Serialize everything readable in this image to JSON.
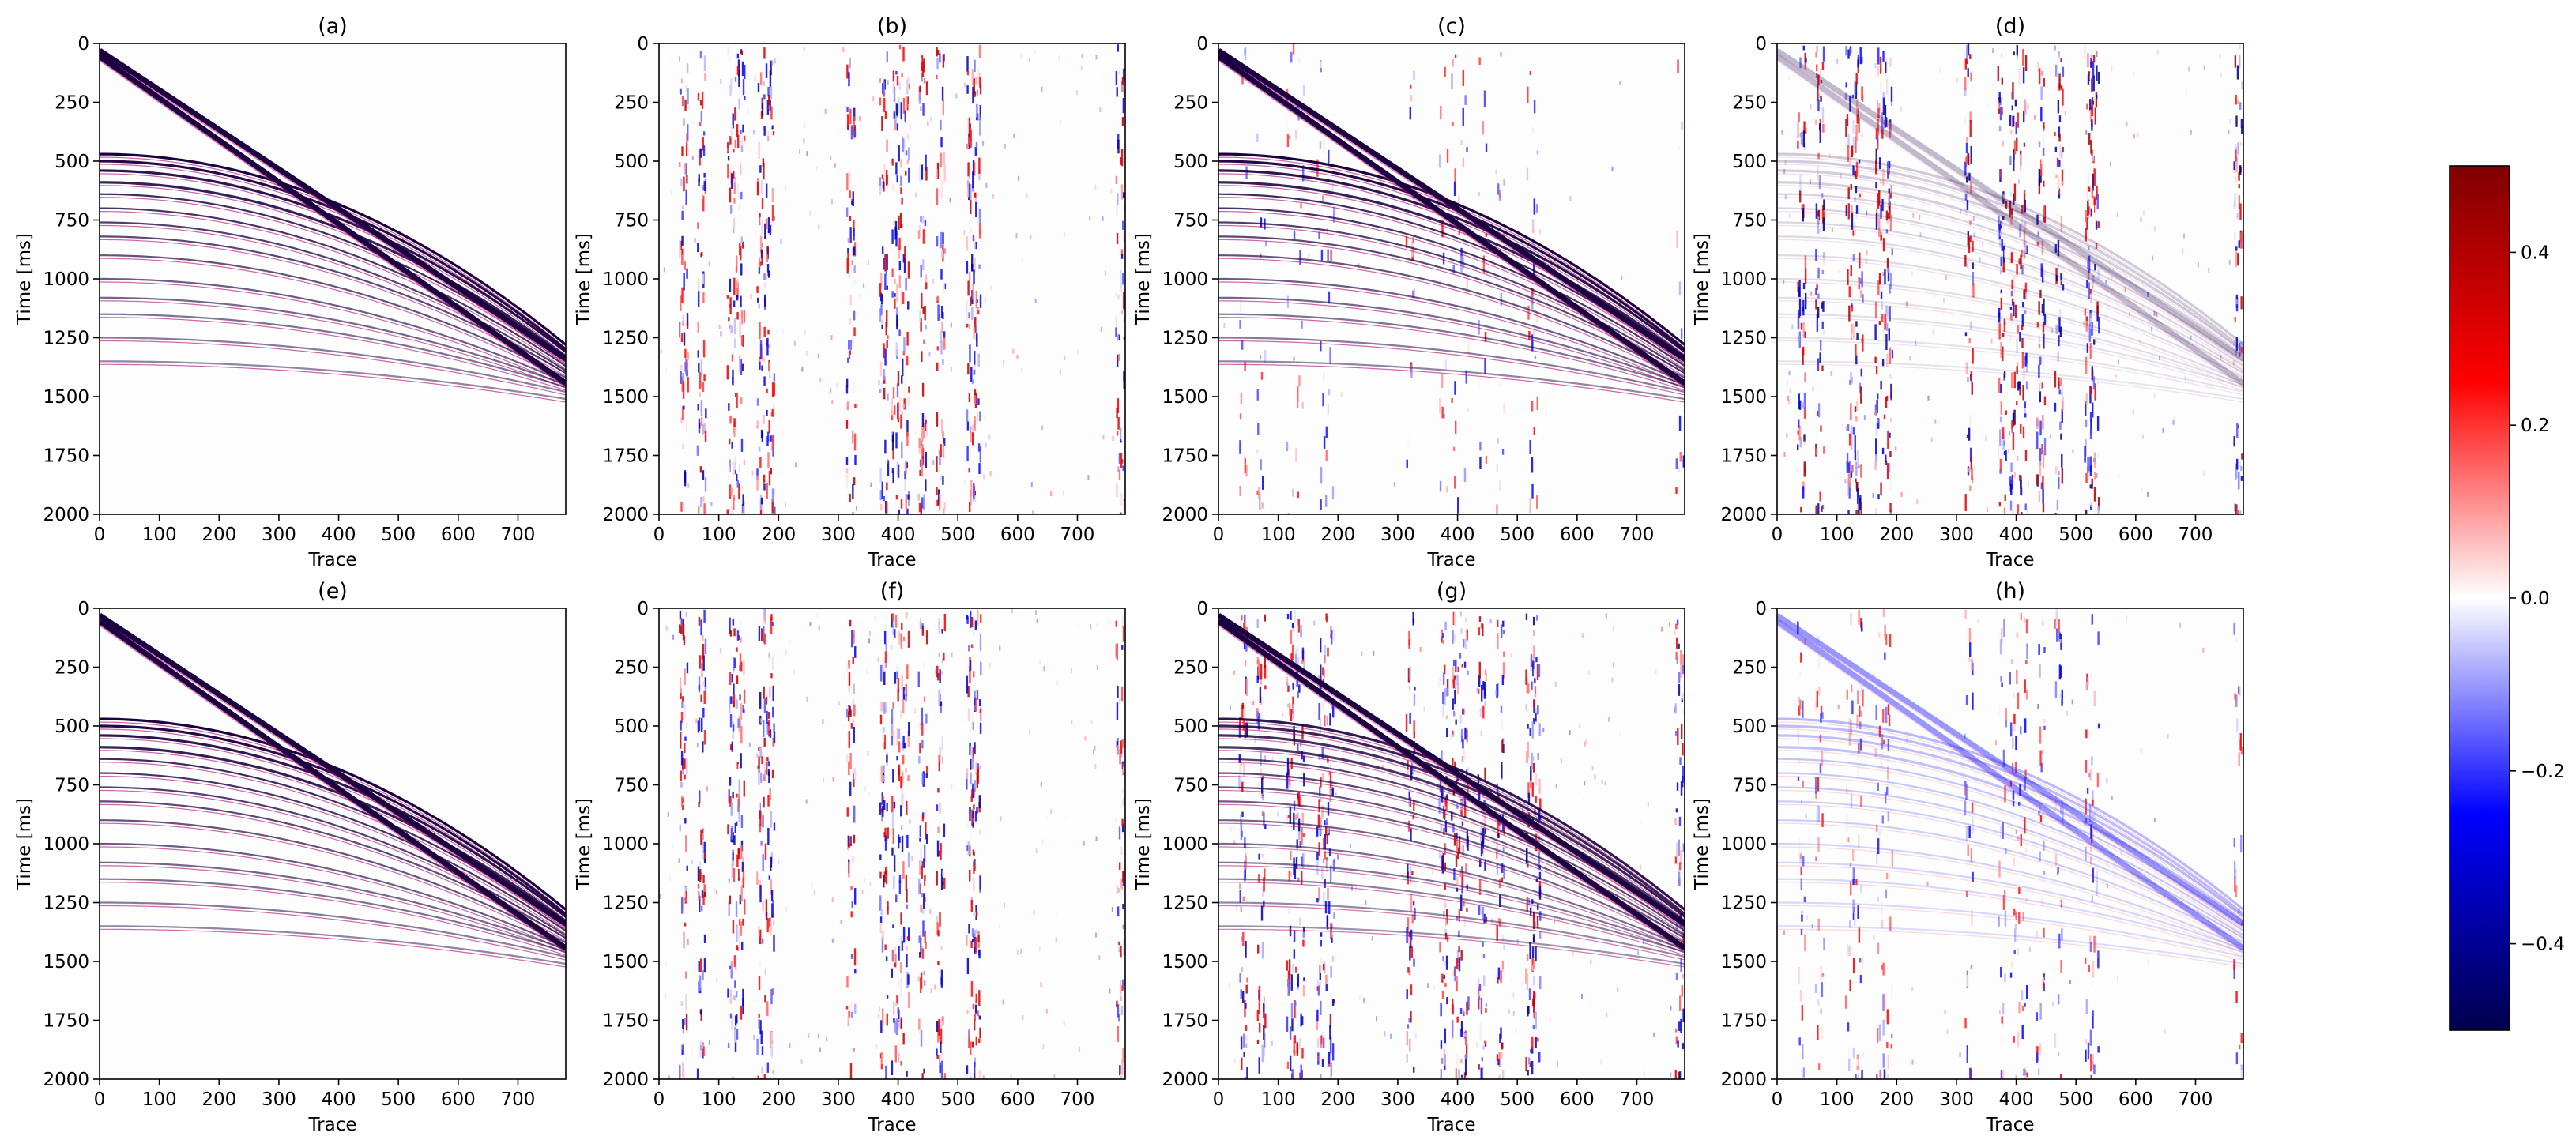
{
  "chart_data": {
    "type": "heatmap",
    "description_units": "seismic gathers, amplitude colormap seismic (blue-white-red)",
    "colormap": [
      "#00004c",
      "#0000ff",
      "#ffffff",
      "#ff0000",
      "#7f0000"
    ],
    "colorbar": {
      "vmin": -0.5,
      "vmax": 0.5,
      "ticks": [
        -0.4,
        -0.2,
        0.0,
        0.2,
        0.4
      ],
      "tick_labels": [
        "−0.4",
        "−0.2",
        "0.0",
        "0.2",
        "0.4"
      ]
    },
    "xlim": [
      0,
      780
    ],
    "ylim": [
      2000,
      0
    ],
    "xticks": [
      0,
      100,
      200,
      300,
      400,
      500,
      600,
      700
    ],
    "yticks": [
      0,
      250,
      500,
      750,
      1000,
      1250,
      1500,
      1750,
      2000
    ],
    "xlabel": "Trace",
    "ylabel": "Time [ms]",
    "panels": [
      {
        "title": "(a)",
        "content": "events",
        "noise": 0,
        "event_amp": 1.0,
        "strip_noise": 0
      },
      {
        "title": "(b)",
        "content": "noise",
        "noise": 0.45,
        "event_amp": 0,
        "strip_noise": 1
      },
      {
        "title": "(c)",
        "content": "events",
        "noise": 0.05,
        "event_amp": 1.0,
        "strip_noise": 0.25
      },
      {
        "title": "(d)",
        "content": "mixed",
        "noise": 0.5,
        "event_amp": 0.2,
        "strip_noise": 1
      },
      {
        "title": "(e)",
        "content": "events",
        "noise": 0,
        "event_amp": 1.0,
        "strip_noise": 0
      },
      {
        "title": "(f)",
        "content": "noise",
        "noise": 0.45,
        "event_amp": 0,
        "strip_noise": 1
      },
      {
        "title": "(g)",
        "content": "mixed",
        "noise": 0.45,
        "event_amp": 0.9,
        "strip_noise": 1
      },
      {
        "title": "(h)",
        "content": "residual",
        "noise": 0.15,
        "event_amp": 0.35,
        "strip_noise": 0.5
      }
    ],
    "direct_waves": [
      {
        "t0": 30,
        "slope": 1.68
      },
      {
        "t0": 55,
        "slope": 1.78
      }
    ],
    "reflections": [
      {
        "t0": 470,
        "tend": 1280
      },
      {
        "t0": 500,
        "tend": 1300
      },
      {
        "t0": 540,
        "tend": 1310
      },
      {
        "t0": 590,
        "tend": 1330
      },
      {
        "t0": 640,
        "tend": 1350
      },
      {
        "t0": 700,
        "tend": 1370
      },
      {
        "t0": 760,
        "tend": 1390
      },
      {
        "t0": 820,
        "tend": 1400
      },
      {
        "t0": 900,
        "tend": 1420
      },
      {
        "t0": 1000,
        "tend": 1440
      },
      {
        "t0": 1080,
        "tend": 1450
      },
      {
        "t0": 1150,
        "tend": 1460
      },
      {
        "t0": 1250,
        "tend": 1480
      },
      {
        "t0": 1350,
        "tend": 1510
      }
    ],
    "noisy_traces": [
      40,
      70,
      120,
      135,
      170,
      185,
      320,
      375,
      395,
      410,
      440,
      470,
      520,
      530,
      770
    ]
  }
}
